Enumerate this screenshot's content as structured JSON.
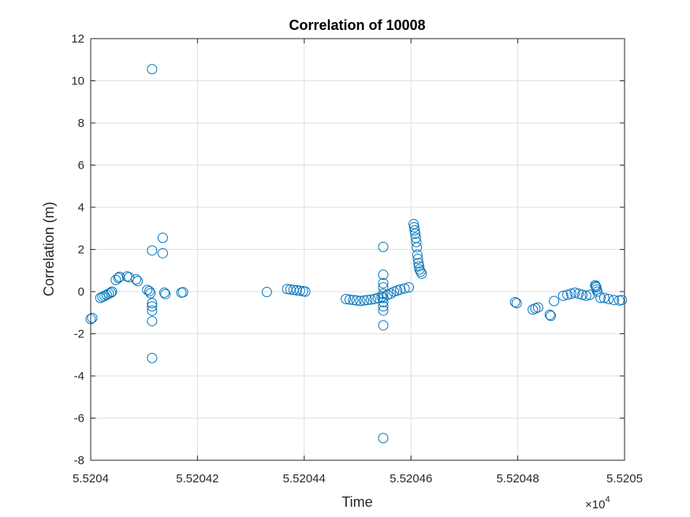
{
  "chart_data": {
    "type": "scatter",
    "title": "Correlation of 10008",
    "xlabel": "Time",
    "ylabel": "Correlation (m)",
    "x_exponent_label": "×10",
    "x_exponent_power": "4",
    "xlim": [
      55204.0,
      55205.0
    ],
    "ylim": [
      -8,
      12
    ],
    "xticks": [
      55204.0,
      55204.2,
      55204.4,
      55204.6,
      55204.8,
      55205.0
    ],
    "xtick_labels": [
      "5.5204",
      "5.52042",
      "5.52044",
      "5.52046",
      "5.52048",
      "5.5205"
    ],
    "yticks": [
      -8,
      -6,
      -4,
      -2,
      0,
      2,
      4,
      6,
      8,
      10,
      12
    ],
    "ytick_labels": [
      "-8",
      "-6",
      "-4",
      "-2",
      "0",
      "2",
      "4",
      "6",
      "8",
      "10",
      "12"
    ],
    "grid": true,
    "marker": "open-circle",
    "marker_color": "#0072BD",
    "x": [
      55204.0,
      55204.003,
      55204.018,
      55204.022,
      55204.026,
      55204.03,
      55204.034,
      55204.038,
      55204.04,
      55204.047,
      55204.052,
      55204.054,
      55204.068,
      55204.072,
      55204.085,
      55204.088,
      55204.106,
      55204.11,
      55204.112,
      55204.115,
      55204.115,
      55204.115,
      55204.115,
      55204.115,
      55204.115,
      55204.115,
      55204.135,
      55204.135,
      55204.138,
      55204.14,
      55204.17,
      55204.173,
      55204.33,
      55204.368,
      55204.374,
      55204.38,
      55204.386,
      55204.392,
      55204.398,
      55204.402,
      55204.478,
      55204.485,
      55204.492,
      55204.498,
      55204.505,
      55204.512,
      55204.518,
      55204.525,
      55204.532,
      55204.538,
      55204.545,
      55204.548,
      55204.548,
      55204.548,
      55204.548,
      55204.548,
      55204.548,
      55204.548,
      55204.548,
      55204.548,
      55204.548,
      55204.548,
      55204.556,
      55204.562,
      55204.568,
      55204.574,
      55204.58,
      55204.588,
      55204.596,
      55204.605,
      55204.606,
      55204.607,
      55204.608,
      55204.609,
      55204.61,
      55204.611,
      55204.612,
      55204.613,
      55204.614,
      55204.615,
      55204.616,
      55204.618,
      55204.62,
      55204.795,
      55204.798,
      55204.828,
      55204.833,
      55204.838,
      55204.86,
      55204.862,
      55204.868,
      55204.885,
      55204.893,
      55204.9,
      55204.907,
      55204.914,
      55204.921,
      55204.928,
      55204.935,
      55204.945,
      55204.946,
      55204.947,
      55204.948,
      55204.949,
      55204.955,
      55204.962,
      55204.97,
      55204.98,
      55204.99,
      55204.995
    ],
    "y": [
      -1.3,
      -1.25,
      -0.3,
      -0.25,
      -0.2,
      -0.15,
      -0.1,
      -0.05,
      0.0,
      0.55,
      0.65,
      0.7,
      0.72,
      0.68,
      0.58,
      0.5,
      0.08,
      0.02,
      -0.08,
      10.55,
      1.95,
      -0.55,
      -0.7,
      -0.9,
      -1.4,
      -3.15,
      2.55,
      1.82,
      -0.05,
      -0.12,
      -0.05,
      -0.03,
      -0.02,
      0.12,
      0.1,
      0.08,
      0.06,
      0.04,
      0.02,
      0.0,
      -0.35,
      -0.38,
      -0.4,
      -0.42,
      -0.45,
      -0.42,
      -0.4,
      -0.38,
      -0.35,
      -0.3,
      -0.25,
      2.12,
      0.8,
      0.4,
      0.2,
      -0.1,
      -0.3,
      -0.5,
      -0.7,
      -0.9,
      -1.6,
      -6.95,
      -0.15,
      -0.1,
      0.0,
      0.05,
      0.1,
      0.15,
      0.2,
      3.2,
      3.05,
      2.9,
      2.75,
      2.55,
      2.35,
      2.1,
      1.75,
      1.55,
      1.35,
      1.2,
      1.05,
      0.95,
      0.85,
      -0.5,
      -0.55,
      -0.85,
      -0.8,
      -0.75,
      -1.1,
      -1.15,
      -0.45,
      -0.2,
      -0.15,
      -0.1,
      -0.05,
      -0.1,
      -0.15,
      -0.2,
      -0.15,
      0.3,
      0.25,
      0.2,
      0.1,
      0.0,
      -0.3,
      -0.3,
      -0.35,
      -0.4,
      -0.42,
      -0.4
    ]
  }
}
